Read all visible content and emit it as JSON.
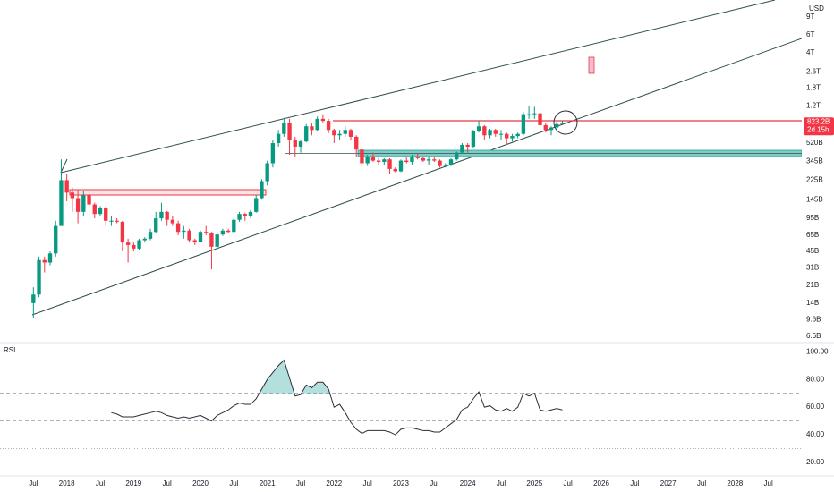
{
  "chart_data": [
    {
      "type": "candlestick",
      "currency": "USD",
      "log_scale": true,
      "up_color": "#089981",
      "down_color": "#f23645",
      "x": [
        "2017-07",
        "2017-08",
        "2017-09",
        "2017-10",
        "2017-11",
        "2017-12",
        "2018-01",
        "2018-02",
        "2018-03",
        "2018-04",
        "2018-05",
        "2018-06",
        "2018-07",
        "2018-08",
        "2018-09",
        "2018-10",
        "2018-11",
        "2018-12",
        "2019-01",
        "2019-02",
        "2019-03",
        "2019-04",
        "2019-05",
        "2019-06",
        "2019-07",
        "2019-08",
        "2019-09",
        "2019-10",
        "2019-11",
        "2019-12",
        "2020-01",
        "2020-02",
        "2020-03",
        "2020-04",
        "2020-05",
        "2020-06",
        "2020-07",
        "2020-08",
        "2020-09",
        "2020-10",
        "2020-11",
        "2020-12",
        "2021-01",
        "2021-02",
        "2021-03",
        "2021-04",
        "2021-05",
        "2021-06",
        "2021-07",
        "2021-08",
        "2021-09",
        "2021-10",
        "2021-11",
        "2021-12",
        "2022-01",
        "2022-02",
        "2022-03",
        "2022-04",
        "2022-05",
        "2022-06",
        "2022-07",
        "2022-08",
        "2022-09",
        "2022-10",
        "2022-11",
        "2022-12",
        "2023-01",
        "2023-02",
        "2023-03",
        "2023-04",
        "2023-05",
        "2023-06",
        "2023-07",
        "2023-08",
        "2023-09",
        "2023-10",
        "2023-11",
        "2023-12",
        "2024-01",
        "2024-02",
        "2024-03",
        "2024-04",
        "2024-05",
        "2024-06",
        "2024-07",
        "2024-08",
        "2024-09",
        "2024-10",
        "2024-11",
        "2024-12",
        "2025-01",
        "2025-02",
        "2025-03",
        "2025-04",
        "2025-05",
        "2025-06"
      ],
      "open": [
        14000000000.0,
        17000000000.0,
        37000000000.0,
        35000000000.0,
        43000000000.0,
        80000000000.0,
        225000000000.0,
        170000000000.0,
        150000000000.0,
        110000000000.0,
        160000000000.0,
        130000000000.0,
        105000000000.0,
        120000000000.0,
        90000000000.0,
        90000000000.0,
        88000000000.0,
        55000000000.0,
        52000000000.0,
        48000000000.0,
        58000000000.0,
        60000000000.0,
        70000000000.0,
        95000000000.0,
        110000000000.0,
        92000000000.0,
        85000000000.0,
        70000000000.0,
        72000000000.0,
        58000000000.0,
        56000000000.0,
        70000000000.0,
        68000000000.0,
        50000000000.0,
        66000000000.0,
        72000000000.0,
        70000000000.0,
        92000000000.0,
        105000000000.0,
        100000000000.0,
        110000000000.0,
        150000000000.0,
        220000000000.0,
        330000000000.0,
        520000000000.0,
        640000000000.0,
        820000000000.0,
        560000000000.0,
        480000000000.0,
        540000000000.0,
        760000000000.0,
        700000000000.0,
        900000000000.0,
        860000000000.0,
        700000000000.0,
        620000000000.0,
        640000000000.0,
        700000000000.0,
        600000000000.0,
        450000000000.0,
        330000000000.0,
        380000000000.0,
        350000000000.0,
        340000000000.0,
        360000000000.0,
        290000000000.0,
        275000000000.0,
        350000000000.0,
        340000000000.0,
        380000000000.0,
        370000000000.0,
        350000000000.0,
        360000000000.0,
        350000000000.0,
        310000000000.0,
        320000000000.0,
        360000000000.0,
        420000000000.0,
        500000000000.0,
        480000000000.0,
        680000000000.0,
        760000000000.0,
        620000000000.0,
        700000000000.0,
        640000000000.0,
        640000000000.0,
        580000000000.0,
        610000000000.0,
        640000000000.0,
        1000000000000.0,
        1000000000000.0,
        1020000000000.0,
        780000000000.0,
        700000000000.0,
        740000000000.0,
        800000000000.0
      ],
      "high": [
        20000000000.0,
        40000000000.0,
        40000000000.0,
        45000000000.0,
        90000000000.0,
        360000000000.0,
        260000000000.0,
        190000000000.0,
        180000000000.0,
        175000000000.0,
        170000000000.0,
        135000000000.0,
        125000000000.0,
        125000000000.0,
        100000000000.0,
        95000000000.0,
        90000000000.0,
        60000000000.0,
        55000000000.0,
        60000000000.0,
        62000000000.0,
        75000000000.0,
        110000000000.0,
        135000000000.0,
        112000000000.0,
        100000000000.0,
        90000000000.0,
        80000000000.0,
        75000000000.0,
        60000000000.0,
        72000000000.0,
        80000000000.0,
        70000000000.0,
        70000000000.0,
        75000000000.0,
        75000000000.0,
        95000000000.0,
        110000000000.0,
        108000000000.0,
        115000000000.0,
        160000000000.0,
        230000000000.0,
        350000000000.0,
        560000000000.0,
        700000000000.0,
        920000000000.0,
        900000000000.0,
        600000000000.0,
        560000000000.0,
        800000000000.0,
        820000000000.0,
        950000000000.0,
        1000000000000.0,
        900000000000.0,
        720000000000.0,
        700000000000.0,
        760000000000.0,
        720000000000.0,
        620000000000.0,
        460000000000.0,
        400000000000.0,
        420000000000.0,
        370000000000.0,
        370000000000.0,
        370000000000.0,
        300000000000.0,
        360000000000.0,
        380000000000.0,
        400000000000.0,
        410000000000.0,
        380000000000.0,
        380000000000.0,
        380000000000.0,
        360000000000.0,
        330000000000.0,
        370000000000.0,
        430000000000.0,
        520000000000.0,
        520000000000.0,
        700000000000.0,
        860000000000.0,
        780000000000.0,
        720000000000.0,
        720000000000.0,
        700000000000.0,
        660000000000.0,
        640000000000.0,
        660000000000.0,
        1050000000000.0,
        1200000000000.0,
        1180000000000.0,
        1050000000000.0,
        820000000000.0,
        760000000000.0,
        850000000000.0,
        860000000000.0
      ],
      "low": [
        10000000000.0,
        16000000000.0,
        28000000000.0,
        33000000000.0,
        40000000000.0,
        80000000000.0,
        140000000000.0,
        110000000000.0,
        85000000000.0,
        100000000000.0,
        100000000000.0,
        95000000000.0,
        100000000000.0,
        80000000000.0,
        80000000000.0,
        85000000000.0,
        45000000000.0,
        35000000000.0,
        45000000000.0,
        46000000000.0,
        55000000000.0,
        58000000000.0,
        68000000000.0,
        90000000000.0,
        80000000000.0,
        80000000000.0,
        65000000000.0,
        60000000000.0,
        55000000000.0,
        52000000000.0,
        55000000000.0,
        65000000000.0,
        30000000000.0,
        48000000000.0,
        64000000000.0,
        68000000000.0,
        68000000000.0,
        88000000000.0,
        90000000000.0,
        95000000000.0,
        108000000000.0,
        145000000000.0,
        200000000000.0,
        300000000000.0,
        480000000000.0,
        600000000000.0,
        400000000000.0,
        380000000000.0,
        420000000000.0,
        530000000000.0,
        620000000000.0,
        690000000000.0,
        830000000000.0,
        650000000000.0,
        520000000000.0,
        560000000000.0,
        600000000000.0,
        560000000000.0,
        380000000000.0,
        300000000000.0,
        310000000000.0,
        340000000000.0,
        320000000000.0,
        320000000000.0,
        260000000000.0,
        270000000000.0,
        270000000000.0,
        330000000000.0,
        320000000000.0,
        360000000000.0,
        340000000000.0,
        320000000000.0,
        340000000000.0,
        300000000000.0,
        300000000000.0,
        310000000000.0,
        350000000000.0,
        410000000000.0,
        420000000000.0,
        470000000000.0,
        660000000000.0,
        560000000000.0,
        580000000000.0,
        600000000000.0,
        560000000000.0,
        500000000000.0,
        540000000000.0,
        580000000000.0,
        620000000000.0,
        900000000000.0,
        900000000000.0,
        700000000000.0,
        660000000000.0,
        620000000000.0,
        720000000000.0,
        780000000000.0
      ],
      "close": [
        17000000000.0,
        37000000000.0,
        35000000000.0,
        43000000000.0,
        80000000000.0,
        225000000000.0,
        170000000000.0,
        150000000000.0,
        110000000000.0,
        160000000000.0,
        130000000000.0,
        105000000000.0,
        120000000000.0,
        90000000000.0,
        90000000000.0,
        88000000000.0,
        55000000000.0,
        52000000000.0,
        48000000000.0,
        58000000000.0,
        60000000000.0,
        70000000000.0,
        95000000000.0,
        110000000000.0,
        92000000000.0,
        85000000000.0,
        70000000000.0,
        72000000000.0,
        58000000000.0,
        56000000000.0,
        70000000000.0,
        68000000000.0,
        50000000000.0,
        66000000000.0,
        72000000000.0,
        70000000000.0,
        92000000000.0,
        105000000000.0,
        100000000000.0,
        110000000000.0,
        150000000000.0,
        220000000000.0,
        330000000000.0,
        520000000000.0,
        640000000000.0,
        820000000000.0,
        560000000000.0,
        480000000000.0,
        540000000000.0,
        760000000000.0,
        700000000000.0,
        900000000000.0,
        860000000000.0,
        700000000000.0,
        620000000000.0,
        640000000000.0,
        700000000000.0,
        600000000000.0,
        450000000000.0,
        330000000000.0,
        380000000000.0,
        350000000000.0,
        340000000000.0,
        360000000000.0,
        290000000000.0,
        275000000000.0,
        350000000000.0,
        340000000000.0,
        380000000000.0,
        370000000000.0,
        350000000000.0,
        360000000000.0,
        350000000000.0,
        310000000000.0,
        320000000000.0,
        360000000000.0,
        420000000000.0,
        500000000000.0,
        480000000000.0,
        680000000000.0,
        760000000000.0,
        620000000000.0,
        700000000000.0,
        640000000000.0,
        640000000000.0,
        580000000000.0,
        610000000000.0,
        640000000000.0,
        1000000000000.0,
        1000000000000.0,
        1020000000000.0,
        780000000000.0,
        700000000000.0,
        740000000000.0,
        800000000000.0,
        823200000000.0
      ],
      "price_label": {
        "value": 823200000000.0,
        "label": "823.2B"
      },
      "countdown": "2d 15h",
      "ylim": [
        5850000000.0,
        13200000000000.0
      ],
      "yticks": [
        {
          "value": 6600000000.0,
          "label": "6.6B"
        },
        {
          "value": 9600000000.0,
          "label": "9.6B"
        },
        {
          "value": 14000000000.0,
          "label": "14B"
        },
        {
          "value": 21000000000.0,
          "label": "21B"
        },
        {
          "value": 31000000000.0,
          "label": "31B"
        },
        {
          "value": 45000000000.0,
          "label": "45B"
        },
        {
          "value": 65000000000.0,
          "label": "65B"
        },
        {
          "value": 95000000000.0,
          "label": "95B"
        },
        {
          "value": 145000000000.0,
          "label": "145B"
        },
        {
          "value": 225000000000.0,
          "label": "225B"
        },
        {
          "value": 345000000000.0,
          "label": "345B"
        },
        {
          "value": 520000000000.0,
          "label": "520B"
        },
        {
          "value": 1200000000000.0,
          "label": "1.2T"
        },
        {
          "value": 1800000000000.0,
          "label": "1.8T"
        },
        {
          "value": 2600000000000.0,
          "label": "2.6T"
        },
        {
          "value": 4000000000000.0,
          "label": "4T"
        },
        {
          "value": 6000000000000.0,
          "label": "6T"
        },
        {
          "value": 9000000000000.0,
          "label": "9T"
        }
      ],
      "xlim": [
        "2017-01",
        "2029-01"
      ],
      "xticks": [
        {
          "value": "2017-07",
          "label": "Jul"
        },
        {
          "value": "2018-01",
          "label": "2018"
        },
        {
          "value": "2018-07",
          "label": "Jul"
        },
        {
          "value": "2019-01",
          "label": "2019"
        },
        {
          "value": "2019-07",
          "label": "Jul"
        },
        {
          "value": "2020-01",
          "label": "2020"
        },
        {
          "value": "2020-07",
          "label": "Jul"
        },
        {
          "value": "2021-01",
          "label": "2021"
        },
        {
          "value": "2021-07",
          "label": "Jul"
        },
        {
          "value": "2022-01",
          "label": "2022"
        },
        {
          "value": "2022-07",
          "label": "Jul"
        },
        {
          "value": "2023-01",
          "label": "2023"
        },
        {
          "value": "2023-07",
          "label": "Jul"
        },
        {
          "value": "2024-01",
          "label": "2024"
        },
        {
          "value": "2024-07",
          "label": "Jul"
        },
        {
          "value": "2025-01",
          "label": "2025"
        },
        {
          "value": "2025-07",
          "label": "Jul"
        },
        {
          "value": "2026-01",
          "label": "2026"
        },
        {
          "value": "2026-07",
          "label": "Jul"
        },
        {
          "value": "2027-01",
          "label": "2027"
        },
        {
          "value": "2027-07",
          "label": "Jul"
        },
        {
          "value": "2028-01",
          "label": "2028"
        },
        {
          "value": "2028-07",
          "label": "Jul"
        }
      ]
    },
    {
      "type": "line",
      "title": "RSI",
      "color": "#2a2e39",
      "fill_color": "#26a69a",
      "x": [
        "2018-09",
        "2018-10",
        "2018-11",
        "2018-12",
        "2019-01",
        "2019-02",
        "2019-03",
        "2019-04",
        "2019-05",
        "2019-06",
        "2019-07",
        "2019-08",
        "2019-09",
        "2019-10",
        "2019-11",
        "2019-12",
        "2020-01",
        "2020-02",
        "2020-03",
        "2020-04",
        "2020-05",
        "2020-06",
        "2020-07",
        "2020-08",
        "2020-09",
        "2020-10",
        "2020-11",
        "2020-12",
        "2021-01",
        "2021-02",
        "2021-03",
        "2021-04",
        "2021-05",
        "2021-06",
        "2021-07",
        "2021-08",
        "2021-09",
        "2021-10",
        "2021-11",
        "2021-12",
        "2022-01",
        "2022-02",
        "2022-03",
        "2022-04",
        "2022-05",
        "2022-06",
        "2022-07",
        "2022-08",
        "2022-09",
        "2022-10",
        "2022-11",
        "2022-12",
        "2023-01",
        "2023-02",
        "2023-03",
        "2023-04",
        "2023-05",
        "2023-06",
        "2023-07",
        "2023-08",
        "2023-09",
        "2023-10",
        "2023-11",
        "2023-12",
        "2024-01",
        "2024-02",
        "2024-03",
        "2024-04",
        "2024-05",
        "2024-06",
        "2024-07",
        "2024-08",
        "2024-09",
        "2024-10",
        "2024-11",
        "2024-12",
        "2025-01",
        "2025-02",
        "2025-03",
        "2025-04",
        "2025-05",
        "2025-06"
      ],
      "values": [
        56,
        55,
        53,
        53,
        53,
        54,
        55,
        56,
        57,
        56,
        54,
        53,
        52,
        53,
        52,
        53,
        54,
        52,
        50,
        54,
        56,
        58,
        61,
        63,
        62,
        62,
        66,
        73,
        80,
        85,
        90,
        94,
        81,
        68,
        69,
        76,
        74,
        78,
        78,
        73,
        60,
        62,
        56,
        49,
        44,
        41,
        43,
        43,
        43,
        43,
        42,
        40,
        44,
        45,
        45,
        44,
        43,
        43,
        42,
        42,
        45,
        48,
        51,
        58,
        60,
        66,
        71,
        60,
        61,
        58,
        57,
        59,
        57,
        60,
        70,
        68,
        70,
        58,
        57,
        58,
        59,
        58
      ],
      "levels": [
        70,
        50,
        30
      ],
      "overbought": 70,
      "ylim": [
        10.3,
        106
      ],
      "yticks": [
        {
          "value": 100,
          "label": "100.00"
        },
        {
          "value": 80,
          "label": "80.00"
        },
        {
          "value": 60,
          "label": "60.00"
        },
        {
          "value": 40,
          "label": "40.00"
        },
        {
          "value": 20,
          "label": "20.00"
        }
      ]
    }
  ]
}
